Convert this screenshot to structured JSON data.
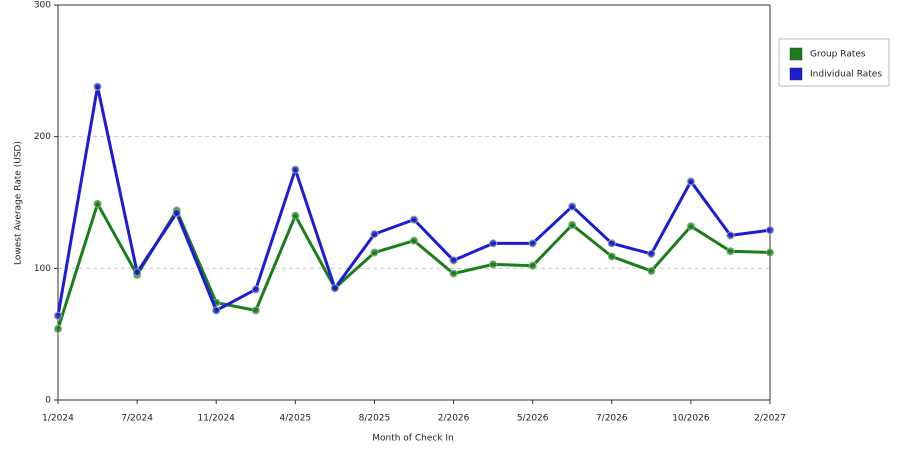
{
  "chart_data": {
    "type": "line",
    "x_label": "Month of Check In",
    "y_label": "Lowest Average Rate (USD)",
    "categories": [
      "1/2024",
      null,
      "7/2024",
      null,
      "11/2024",
      null,
      "4/2025",
      null,
      "8/2025",
      null,
      "2/2026",
      null,
      "5/2026",
      null,
      "7/2026",
      null,
      "10/2026",
      null,
      "2/2027"
    ],
    "series": [
      {
        "name": "Group Rates",
        "color": "#1a7f1a",
        "values": [
          54,
          149,
          95,
          144,
          74,
          68,
          140,
          85,
          112,
          121,
          96,
          103,
          102,
          133,
          109,
          98,
          132,
          113,
          112
        ]
      },
      {
        "name": "Individual Rates",
        "color": "#1c1cd6",
        "values": [
          64,
          238,
          97,
          142,
          68,
          84,
          175,
          85,
          126,
          137,
          106,
          119,
          119,
          147,
          119,
          111,
          166,
          125,
          129
        ]
      }
    ],
    "ylim": [
      0,
      300
    ],
    "yticks": [
      0,
      100,
      200,
      300
    ],
    "grid": true,
    "legend": "right"
  }
}
